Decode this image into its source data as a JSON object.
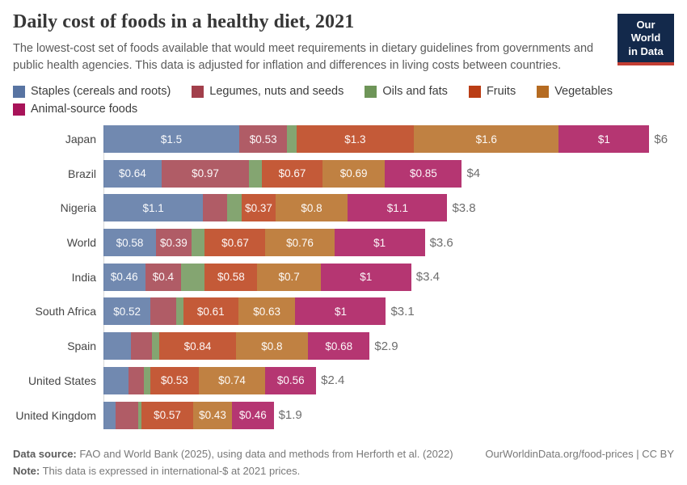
{
  "header": {
    "title": "Daily cost of foods in a healthy diet, 2021",
    "subtitle": "The lowest-cost set of foods available that would meet requirements in dietary guidelines from governments and public health agencies. This data is adjusted for inflation and differences in living costs between countries.",
    "logo": {
      "line1": "Our World",
      "line2": "in Data",
      "bg_color": "#13294b",
      "stripe_color": "#c33d33"
    }
  },
  "legend": [
    {
      "label": "Staples (cereals and roots)",
      "color": "#5874a2"
    },
    {
      "label": "Legumes, nuts and seeds",
      "color": "#a23f4b"
    },
    {
      "label": "Oils and fats",
      "color": "#6e9558"
    },
    {
      "label": "Fruits",
      "color": "#ba3d15"
    },
    {
      "label": "Vegetables",
      "color": "#b56b21"
    },
    {
      "label": "Animal-source foods",
      "color": "#a81359"
    }
  ],
  "chart_data": {
    "type": "bar",
    "stacked": true,
    "orientation": "horizontal",
    "unit": "international-$ per person per day",
    "xlim": [
      0,
      6.05
    ],
    "grid": false,
    "legend_position": "top",
    "series_names": [
      "Staples (cereals and roots)",
      "Legumes, nuts and seeds",
      "Oils and fats",
      "Fruits",
      "Vegetables",
      "Animal-source foods"
    ],
    "categories": [
      "Japan",
      "Brazil",
      "Nigeria",
      "World",
      "India",
      "South Africa",
      "Spain",
      "United States",
      "United Kingdom"
    ],
    "rows": [
      {
        "country": "Japan",
        "values": [
          1.5,
          0.53,
          0.1,
          1.3,
          1.6,
          1.0
        ],
        "labels": [
          "$1.5",
          "$0.53",
          "",
          "$1.3",
          "$1.6",
          "$1"
        ],
        "total": "$6"
      },
      {
        "country": "Brazil",
        "values": [
          0.64,
          0.97,
          0.14,
          0.67,
          0.69,
          0.85
        ],
        "labels": [
          "$0.64",
          "$0.97",
          "",
          "$0.67",
          "$0.69",
          "$0.85"
        ],
        "total": "$4"
      },
      {
        "country": "Nigeria",
        "values": [
          1.1,
          0.27,
          0.16,
          0.37,
          0.8,
          1.1
        ],
        "labels": [
          "$1.1",
          "",
          "",
          "$0.37",
          "$0.8",
          "$1.1"
        ],
        "total": "$3.8"
      },
      {
        "country": "World",
        "values": [
          0.58,
          0.39,
          0.15,
          0.67,
          0.76,
          1.0
        ],
        "labels": [
          "$0.58",
          "$0.39",
          "",
          "$0.67",
          "$0.76",
          "$1"
        ],
        "total": "$3.6"
      },
      {
        "country": "India",
        "values": [
          0.46,
          0.4,
          0.26,
          0.58,
          0.7,
          1.0
        ],
        "labels": [
          "$0.46",
          "$0.4",
          "",
          "$0.58",
          "$0.7",
          "$1"
        ],
        "total": "$3.4"
      },
      {
        "country": "South Africa",
        "values": [
          0.52,
          0.28,
          0.08,
          0.61,
          0.63,
          1.0
        ],
        "labels": [
          "$0.52",
          "",
          "",
          "$0.61",
          "$0.63",
          "$1"
        ],
        "total": "$3.1"
      },
      {
        "country": "Spain",
        "values": [
          0.3,
          0.24,
          0.08,
          0.84,
          0.8,
          0.68
        ],
        "labels": [
          "",
          "",
          "",
          "$0.84",
          "$0.8",
          "$0.68"
        ],
        "total": "$2.9"
      },
      {
        "country": "United States",
        "values": [
          0.28,
          0.17,
          0.07,
          0.53,
          0.74,
          0.56
        ],
        "labels": [
          "",
          "",
          "",
          "$0.53",
          "$0.74",
          "$0.56"
        ],
        "total": "$2.4"
      },
      {
        "country": "United Kingdom",
        "values": [
          0.13,
          0.25,
          0.04,
          0.57,
          0.43,
          0.46
        ],
        "labels": [
          "",
          "",
          "",
          "$0.57",
          "$0.43",
          "$0.46"
        ],
        "total": "$1.9"
      }
    ]
  },
  "footer": {
    "source_label": "Data source:",
    "source_text": " FAO and World Bank (2025), using data and methods from Herforth et al. (2022)",
    "note_label": "Note:",
    "note_text": " This data is expressed in international-$ at 2021 prices.",
    "right_text": "OurWorldinData.org/food-prices | CC BY"
  }
}
